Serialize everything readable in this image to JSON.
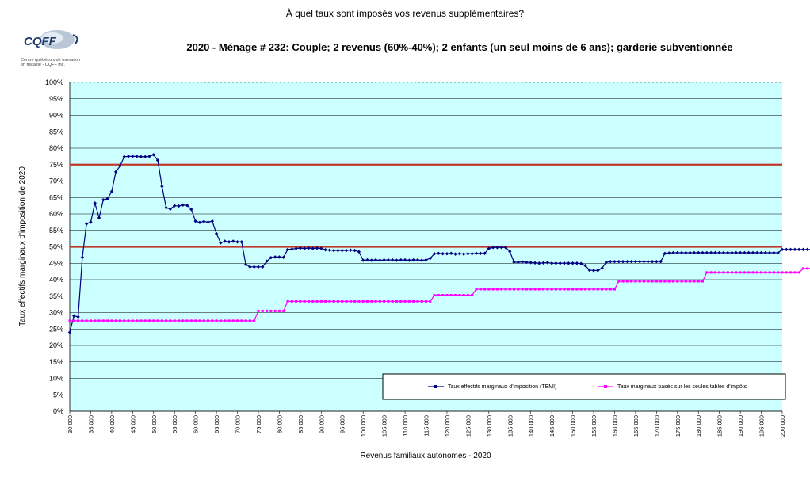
{
  "header": {
    "question": "À quel taux sont imposés vos revenus supplémentaires?",
    "chart_title": "2020 - Ménage # 232: Couple; 2 revenus (60%-40%); 2 enfants (un seul moins de 6 ans); garderie subventionnée"
  },
  "logo": {
    "text": "CQFF",
    "caption": "Centre québécois de formation\nen fiscalité - CQFF inc."
  },
  "colors": {
    "plot_bg": "#ccffff",
    "temi": "#000080",
    "tables": "#ff00ff",
    "reference": "#c0392b"
  },
  "chart_data": {
    "type": "line",
    "title": "2020 - Ménage # 232: Couple; 2 revenus (60%-40%); 2 enfants (un seul moins de 6 ans); garderie subventionnée",
    "xlabel": "Revenus familiaux autonomes - 2020",
    "ylabel": "Taux effectifs marginaux d'imposition de 2020",
    "xlim": [
      30000,
      200000
    ],
    "ylim": [
      0,
      100
    ],
    "x_step": 1000,
    "x_ticks": [
      "30 000",
      "35 000",
      "40 000",
      "45 000",
      "50 000",
      "55 000",
      "60 000",
      "65 000",
      "70 000",
      "75 000",
      "80 000",
      "85 000",
      "90 000",
      "95 000",
      "100 000",
      "105 000",
      "110 000",
      "115 000",
      "120 000",
      "125 000",
      "130 000",
      "135 000",
      "140 000",
      "145 000",
      "150 000",
      "155 000",
      "160 000",
      "165 000",
      "170 000",
      "175 000",
      "180 000",
      "185 000",
      "190 000",
      "195 000",
      "200 000"
    ],
    "y_ticks": [
      "0%",
      "5%",
      "10%",
      "15%",
      "20%",
      "25%",
      "30%",
      "35%",
      "40%",
      "45%",
      "50%",
      "55%",
      "60%",
      "65%",
      "70%",
      "75%",
      "80%",
      "85%",
      "90%",
      "95%",
      "100%"
    ],
    "reference_lines": [
      50,
      75
    ],
    "grid": true,
    "legend_position": "bottom-right",
    "series": [
      {
        "name": "Taux effectifs marginaux d'imposition (TEMI)",
        "values": [
          24,
          29,
          28.7,
          46.8,
          57,
          57.5,
          63.3,
          58.8,
          64.3,
          64.6,
          66.8,
          72.8,
          74.6,
          77.4,
          77.5,
          77.5,
          77.5,
          77.4,
          77.4,
          77.5,
          78,
          76.3,
          68.4,
          61.9,
          61.5,
          62.5,
          62.4,
          62.7,
          62.6,
          61.4,
          57.8,
          57.4,
          57.7,
          57.5,
          57.8,
          54,
          51.2,
          51.7,
          51.5,
          51.7,
          51.5,
          51.5,
          44.6,
          43.9,
          43.9,
          43.9,
          43.9,
          45.6,
          46.7,
          46.9,
          46.9,
          46.8,
          49.2,
          49.3,
          49.5,
          49.6,
          49.5,
          49.6,
          49.5,
          49.6,
          49.5,
          49.1,
          49,
          48.9,
          48.9,
          48.9,
          48.9,
          49,
          48.9,
          48.5,
          45.9,
          46,
          45.9,
          46,
          45.9,
          46,
          46,
          46,
          45.9,
          46,
          46,
          45.9,
          46,
          46,
          45.9,
          46,
          46.5,
          47.9,
          48,
          47.9,
          47.9,
          48,
          47.8,
          47.9,
          47.8,
          47.9,
          47.9,
          48,
          48,
          48,
          49.5,
          49.8,
          49.8,
          49.8,
          49.8,
          48.6,
          45.3,
          45.3,
          45.4,
          45.3,
          45.2,
          45.1,
          45,
          45.1,
          45.2,
          45,
          45,
          45,
          45,
          45,
          45,
          45,
          44.9,
          44.3,
          42.9,
          42.8,
          42.8,
          43.5,
          45.3,
          45.5,
          45.5,
          45.5,
          45.5,
          45.5,
          45.5,
          45.5,
          45.5,
          45.5,
          45.5,
          45.5,
          45.5,
          45.5,
          48,
          48.1,
          48.2,
          48.2,
          48.2,
          48.2,
          48.2,
          48.2,
          48.2,
          48.2,
          48.2,
          48.2,
          48.2,
          48.2,
          48.2,
          48.2,
          48.2,
          48.2,
          48.2,
          48.2,
          48.2,
          48.2,
          48.2,
          48.2,
          48.2,
          48.2,
          48.2,
          48.2,
          49.2,
          49.2,
          49.2,
          49.2,
          49.2,
          49.2,
          49.2,
          49.2,
          49.2,
          49.2,
          49.2,
          49.2,
          49.2,
          49.2,
          49.2,
          49.2,
          49.1,
          49.1,
          49
        ]
      },
      {
        "name": "Taux marginaux basés sur les seules tables d'impôts",
        "values": [
          27.5,
          27.5,
          27.5,
          27.5,
          27.5,
          27.5,
          27.5,
          27.5,
          27.5,
          27.5,
          27.5,
          27.5,
          27.5,
          27.5,
          27.5,
          27.5,
          27.5,
          27.5,
          27.5,
          27.5,
          27.5,
          27.5,
          27.5,
          27.5,
          27.5,
          27.5,
          27.5,
          27.5,
          27.5,
          27.5,
          27.5,
          27.5,
          27.5,
          27.5,
          27.5,
          27.5,
          27.5,
          27.5,
          27.5,
          27.5,
          27.5,
          27.5,
          27.5,
          27.5,
          27.5,
          30.5,
          30.5,
          30.5,
          30.5,
          30.5,
          30.5,
          30.5,
          33.4,
          33.4,
          33.4,
          33.4,
          33.4,
          33.4,
          33.4,
          33.4,
          33.4,
          33.4,
          33.4,
          33.4,
          33.4,
          33.4,
          33.4,
          33.4,
          33.4,
          33.4,
          33.4,
          33.4,
          33.4,
          33.4,
          33.4,
          33.4,
          33.4,
          33.4,
          33.4,
          33.4,
          33.4,
          33.4,
          33.4,
          33.4,
          33.4,
          33.4,
          33.4,
          35.3,
          35.3,
          35.3,
          35.3,
          35.3,
          35.3,
          35.3,
          35.3,
          35.3,
          35.3,
          37.1,
          37.1,
          37.1,
          37.1,
          37.1,
          37.1,
          37.1,
          37.1,
          37.1,
          37.1,
          37.1,
          37.1,
          37.1,
          37.1,
          37.1,
          37.1,
          37.1,
          37.1,
          37.1,
          37.1,
          37.1,
          37.1,
          37.1,
          37.1,
          37.1,
          37.1,
          37.1,
          37.1,
          37.1,
          37.1,
          37.1,
          37.1,
          37.1,
          37.1,
          39.5,
          39.5,
          39.5,
          39.5,
          39.5,
          39.5,
          39.5,
          39.5,
          39.5,
          39.5,
          39.5,
          39.5,
          39.5,
          39.5,
          39.5,
          39.5,
          39.5,
          39.5,
          39.5,
          39.5,
          39.5,
          42.2,
          42.2,
          42.2,
          42.2,
          42.2,
          42.2,
          42.2,
          42.2,
          42.2,
          42.2,
          42.2,
          42.2,
          42.2,
          42.2,
          42.2,
          42.2,
          42.2,
          42.2,
          42.2,
          42.2,
          42.2,
          42.2,
          42.2,
          43.4,
          43.4,
          43.4,
          43.4,
          43.4,
          43.4,
          43.4,
          43.4,
          43.4,
          43.4,
          43.4,
          43.4,
          43.4,
          43.4,
          43.4,
          43.4,
          43.4,
          43.4,
          43.4
        ]
      }
    ]
  }
}
